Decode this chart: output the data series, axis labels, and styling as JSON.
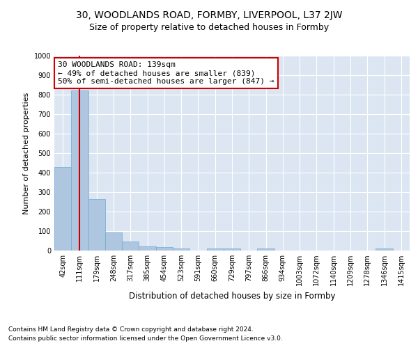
{
  "title1": "30, WOODLANDS ROAD, FORMBY, LIVERPOOL, L37 2JW",
  "title2": "Size of property relative to detached houses in Formby",
  "xlabel": "Distribution of detached houses by size in Formby",
  "ylabel": "Number of detached properties",
  "categories": [
    "42sqm",
    "111sqm",
    "179sqm",
    "248sqm",
    "317sqm",
    "385sqm",
    "454sqm",
    "523sqm",
    "591sqm",
    "660sqm",
    "729sqm",
    "797sqm",
    "866sqm",
    "934sqm",
    "1003sqm",
    "1072sqm",
    "1140sqm",
    "1209sqm",
    "1278sqm",
    "1346sqm",
    "1415sqm"
  ],
  "values": [
    430,
    820,
    265,
    92,
    45,
    22,
    17,
    12,
    0,
    12,
    12,
    0,
    12,
    0,
    0,
    0,
    0,
    0,
    0,
    10,
    0
  ],
  "bar_color": "#aec6e0",
  "bar_edge_color": "#6fa8d0",
  "vline_x": 1,
  "vline_color": "#cc0000",
  "annotation_box_text": "30 WOODLANDS ROAD: 139sqm\n← 49% of detached houses are smaller (839)\n50% of semi-detached houses are larger (847) →",
  "ylim": [
    0,
    1000
  ],
  "yticks": [
    0,
    100,
    200,
    300,
    400,
    500,
    600,
    700,
    800,
    900,
    1000
  ],
  "background_color": "#dce6f2",
  "footer1": "Contains HM Land Registry data © Crown copyright and database right 2024.",
  "footer2": "Contains public sector information licensed under the Open Government Licence v3.0.",
  "title1_fontsize": 10,
  "title2_fontsize": 9,
  "xlabel_fontsize": 8.5,
  "ylabel_fontsize": 8,
  "tick_fontsize": 7,
  "annotation_fontsize": 8,
  "footer_fontsize": 6.5
}
